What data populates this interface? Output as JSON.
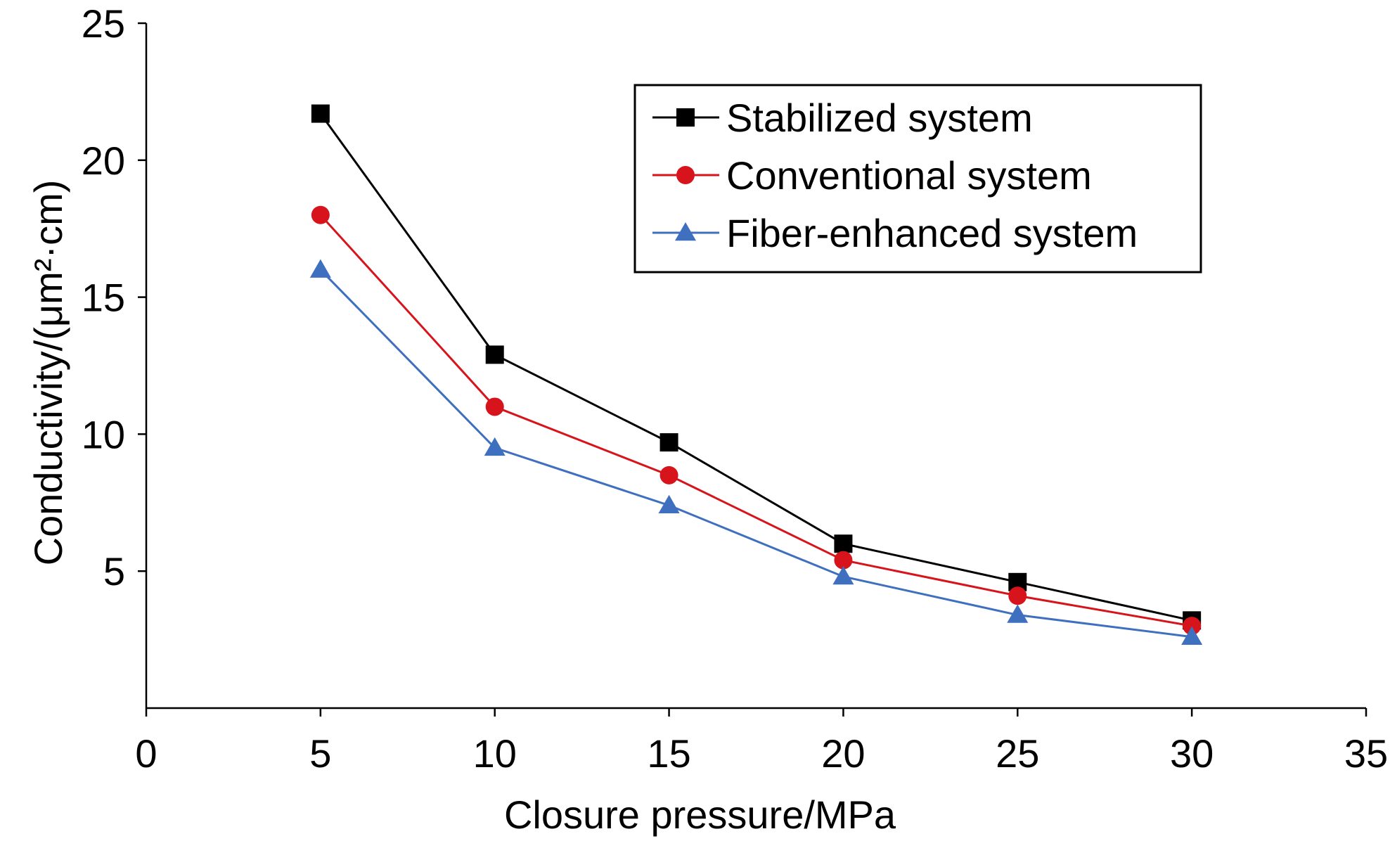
{
  "chart_data": {
    "type": "line",
    "title": "",
    "xlabel": "Closure pressure/MPa",
    "ylabel": "Conductivity/(μm²·cm)",
    "xlim": [
      0,
      35
    ],
    "ylim": [
      0,
      25
    ],
    "x_ticks": [
      "0",
      "5",
      "10",
      "15",
      "20",
      "25",
      "30",
      "35"
    ],
    "y_ticks": [
      "5",
      "10",
      "15",
      "20",
      "25"
    ],
    "grid": false,
    "legend_position": "top-right",
    "x": [
      5,
      10,
      15,
      20,
      25,
      30
    ],
    "series": [
      {
        "name": "Stabilized system",
        "color": "#000000",
        "marker": "square",
        "values": [
          21.7,
          12.9,
          9.7,
          6.0,
          4.6,
          3.2
        ]
      },
      {
        "name": "Conventional system",
        "color": "#d7141c",
        "marker": "circle",
        "values": [
          18.0,
          11.0,
          8.5,
          5.4,
          4.1,
          3.0
        ]
      },
      {
        "name": "Fiber-enhanced system",
        "color": "#3f6fbf",
        "marker": "triangle",
        "values": [
          16.0,
          9.5,
          7.4,
          4.8,
          3.4,
          2.6
        ]
      }
    ]
  }
}
